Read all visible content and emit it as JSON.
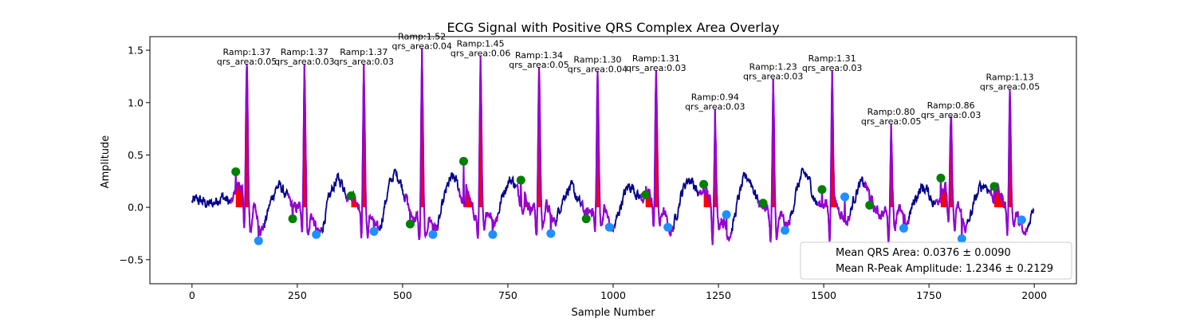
{
  "chart_data": {
    "type": "line",
    "title": "ECG Signal with Positive QRS Complex Area Overlay",
    "xlabel": "Sample Number",
    "ylabel": "Amplitude",
    "xlim": [
      -100,
      2100
    ],
    "ylim": [
      -0.73,
      1.63
    ],
    "xticks": [
      0,
      250,
      500,
      750,
      1000,
      1250,
      1500,
      1750,
      2000
    ],
    "xtick_labels": [
      "0",
      "250",
      "500",
      "750",
      "1000",
      "1250",
      "1500",
      "1750",
      "2000"
    ],
    "yticks": [
      -0.5,
      0.0,
      0.5,
      1.0,
      1.5
    ],
    "ytick_labels": [
      "−0.5",
      "0.0",
      "0.5",
      "1.0",
      "1.5"
    ],
    "colors": {
      "signal": "#00008b",
      "qrs_segment": "#9400d3",
      "qrs_area": "#ff0000",
      "q_marker": "#008000",
      "s_marker": "#1e90ff",
      "annotation_text": "#000000"
    },
    "beats": [
      {
        "r": 130,
        "amp": 1.37,
        "area": 0.05,
        "q": 104,
        "q_amp": 0.34,
        "s": 158,
        "s_amp": -0.32,
        "ramp_label": "Ramp:1.37",
        "area_label": "qrs_area:0.05"
      },
      {
        "r": 267,
        "amp": 1.37,
        "area": 0.03,
        "q": 239,
        "q_amp": -0.11,
        "s": 295,
        "s_amp": -0.26,
        "ramp_label": "Ramp:1.37",
        "area_label": "qrs_area:0.03"
      },
      {
        "r": 408,
        "amp": 1.37,
        "area": 0.03,
        "q": 378,
        "q_amp": 0.11,
        "s": 432,
        "s_amp": -0.23,
        "ramp_label": "Ramp:1.37",
        "area_label": "qrs_area:0.03"
      },
      {
        "r": 546,
        "amp": 1.52,
        "area": 0.04,
        "q": 518,
        "q_amp": -0.16,
        "s": 572,
        "s_amp": -0.26,
        "ramp_label": "Ramp:1.52",
        "area_label": "qrs_area:0.04"
      },
      {
        "r": 685,
        "amp": 1.45,
        "area": 0.06,
        "q": 645,
        "q_amp": 0.44,
        "s": 714,
        "s_amp": -0.26,
        "ramp_label": "Ramp:1.45",
        "area_label": "qrs_area:0.06"
      },
      {
        "r": 824,
        "amp": 1.34,
        "area": 0.05,
        "q": 781,
        "q_amp": 0.26,
        "s": 852,
        "s_amp": -0.25,
        "ramp_label": "Ramp:1.34",
        "area_label": "qrs_area:0.05"
      },
      {
        "r": 963,
        "amp": 1.3,
        "area": 0.04,
        "q": 936,
        "q_amp": -0.11,
        "s": 991,
        "s_amp": -0.19,
        "ramp_label": "Ramp:1.30",
        "area_label": "qrs_area:0.04"
      },
      {
        "r": 1102,
        "amp": 1.31,
        "area": 0.03,
        "q": 1077,
        "q_amp": 0.12,
        "s": 1130,
        "s_amp": -0.19,
        "ramp_label": "Ramp:1.31",
        "area_label": "qrs_area:0.03"
      },
      {
        "r": 1242,
        "amp": 0.94,
        "area": 0.03,
        "q": 1215,
        "q_amp": 0.22,
        "s": 1269,
        "s_amp": -0.07,
        "ramp_label": "Ramp:0.94",
        "area_label": "qrs_area:0.03"
      },
      {
        "r": 1380,
        "amp": 1.23,
        "area": 0.03,
        "q": 1356,
        "q_amp": 0.04,
        "s": 1408,
        "s_amp": -0.22,
        "ramp_label": "Ramp:1.23",
        "area_label": "qrs_area:0.03"
      },
      {
        "r": 1520,
        "amp": 1.31,
        "area": 0.03,
        "q": 1496,
        "q_amp": 0.17,
        "s": 1550,
        "s_amp": 0.1,
        "ramp_label": "Ramp:1.31",
        "area_label": "qrs_area:0.03"
      },
      {
        "r": 1660,
        "amp": 0.8,
        "area": 0.05,
        "q": 1609,
        "q_amp": 0.02,
        "s": 1690,
        "s_amp": -0.2,
        "ramp_label": "Ramp:0.80",
        "area_label": "qrs_area:0.05"
      },
      {
        "r": 1802,
        "amp": 0.86,
        "area": 0.03,
        "q": 1778,
        "q_amp": 0.28,
        "s": 1828,
        "s_amp": -0.3,
        "ramp_label": "Ramp:0.86",
        "area_label": "qrs_area:0.03"
      },
      {
        "r": 1942,
        "amp": 1.13,
        "area": 0.05,
        "q": 1905,
        "q_amp": 0.2,
        "s": 1970,
        "s_amp": -0.12,
        "ramp_label": "Ramp:1.13",
        "area_label": "qrs_area:0.05"
      }
    ],
    "legend": {
      "placement": "lower-right",
      "entries": [
        "Mean QRS Area: 0.0376 ± 0.0090",
        "Mean R-Peak Amplitude: 1.2346 ± 0.2129"
      ]
    },
    "grid": false
  }
}
